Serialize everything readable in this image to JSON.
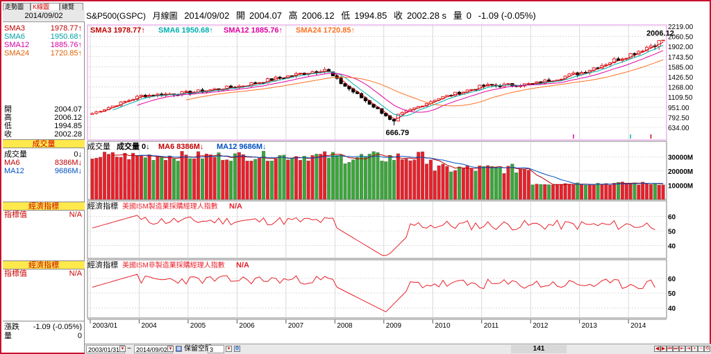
{
  "tabs": [
    {
      "label": "走勢圖",
      "active": false
    },
    {
      "label": "K線圖",
      "active": true
    },
    {
      "label": "總覽",
      "active": false
    }
  ],
  "left_panel": {
    "date": "2014/09/02",
    "ma_rows": [
      {
        "label": "SMA3",
        "value": "1978.77",
        "arrow": "↑",
        "color": "#c00000"
      },
      {
        "label": "SMA6",
        "value": "1950.68",
        "arrow": "↑",
        "color": "#00a0a0"
      },
      {
        "label": "SMA12",
        "value": "1885.76",
        "arrow": "↑",
        "color": "#d000a0"
      },
      {
        "label": "SMA24",
        "value": "1720.85",
        "arrow": "↑",
        "color": "#e06000"
      }
    ],
    "ohlc_rows": [
      {
        "label": "開",
        "value": "2004.07"
      },
      {
        "label": "高",
        "value": "2006.12"
      },
      {
        "label": "低",
        "value": "1994.85"
      },
      {
        "label": "收",
        "value": "2002.28"
      }
    ],
    "volume_header": "成交量",
    "volume_rows": [
      {
        "label": "成交量",
        "value": "0",
        "arrow": "↓",
        "color": "#000000"
      },
      {
        "label": "MA6",
        "value": "8386M",
        "arrow": "↓",
        "color": "#c00000"
      },
      {
        "label": "MA12",
        "value": "9686M",
        "arrow": "↓",
        "color": "#0050c0"
      }
    ],
    "indicator1_header": "經濟指標",
    "indicator1_label": "指標值",
    "indicator1_value": "N/A",
    "indicator2_header": "經濟指標",
    "indicator2_label": "指標值",
    "indicator2_value": "N/A",
    "change_label": "漲跌",
    "change_value": "-1.09 (-0.05%)",
    "volume_label": "量",
    "volume_value": "0"
  },
  "header": {
    "symbol": "S&P500(GSPC)",
    "period": "月線圖",
    "date": "2014/09/02",
    "open_label": "開",
    "open": "2004.07",
    "high_label": "高",
    "high": "2006.12",
    "low_label": "低",
    "low": "1994.85",
    "close_label": "收",
    "close": "2002.28 s",
    "vol_label": "量",
    "vol": "0",
    "change": "-1.09 (-0.05%)"
  },
  "colors": {
    "up": "#e8202a",
    "down": "#000000",
    "vol_up": "#e8202a",
    "vol_down": "#3aa63a",
    "sma3": "#c00000",
    "sma6": "#00b0b0",
    "sma12": "#e000a0",
    "sma24": "#ff7020",
    "ism": "#e8202a",
    "grid": "#c8c8c8",
    "frame": "#c8102e"
  },
  "bottom_bar": {
    "start_date": "2003/01/31",
    "tilde": "~",
    "end_date": "2014/09/02",
    "keep_space_label": "保留空間",
    "keep_space_value": "3",
    "bar_count": "141"
  },
  "chart_data": [
    {
      "type": "candlestick",
      "title": "",
      "legend": [
        {
          "name": "SMA3",
          "text": "SMA3 1978.77↑"
        },
        {
          "name": "SMA6",
          "text": "SMA6 1950.68↑"
        },
        {
          "name": "SMA12",
          "text": "SMA12 1885.76↑"
        },
        {
          "name": "SMA24",
          "text": "SMA24 1720.85↑"
        }
      ],
      "y_ticks": [
        2219.0,
        2060.5,
        1902.0,
        1743.5,
        1585.0,
        1426.5,
        1268.0,
        1109.5,
        951.0,
        792.5,
        634.0
      ],
      "y_tick_labels": [
        "2219.00",
        "2060.50",
        "1902.00",
        "1743.50",
        "1585.00",
        "1426.50",
        "1268.00",
        "1109.50",
        "951.00",
        "792.50",
        "634.00"
      ],
      "ylim": [
        634.0,
        2219.0
      ],
      "x_tick_labels": [
        "2003/01",
        "2004",
        "2005",
        "2006",
        "2007",
        "2008",
        "2009",
        "2010",
        "2011",
        "2012",
        "2013",
        "2014"
      ],
      "annotations": [
        {
          "text": "2006.12",
          "x": "2014/09",
          "y": 2006.12
        },
        {
          "text": "666.79",
          "x": "2009/03",
          "y": 666.79
        }
      ],
      "close_by_year": [
        {
          "x": "2003/01",
          "close": 855
        },
        {
          "x": "2004/01",
          "close": 1131
        },
        {
          "x": "2005/01",
          "close": 1181
        },
        {
          "x": "2006/01",
          "close": 1280
        },
        {
          "x": "2007/01",
          "close": 1438
        },
        {
          "x": "2007/10",
          "close": 1549
        },
        {
          "x": "2008/01",
          "close": 1378
        },
        {
          "x": "2009/01",
          "close": 825
        },
        {
          "x": "2009/03",
          "close": 797
        },
        {
          "x": "2010/01",
          "close": 1073
        },
        {
          "x": "2011/01",
          "close": 1286
        },
        {
          "x": "2012/01",
          "close": 1312
        },
        {
          "x": "2013/01",
          "close": 1498
        },
        {
          "x": "2014/01",
          "close": 1782
        },
        {
          "x": "2014/09",
          "close": 2002
        }
      ],
      "grid": true
    },
    {
      "type": "bar",
      "title": "成交量",
      "legend": [
        {
          "name": "成交量",
          "text": "成交量 0↓"
        },
        {
          "name": "MA6",
          "text": "MA6 8386M↓"
        },
        {
          "name": "MA12",
          "text": "MA12 9686M↓"
        }
      ],
      "y_tick_labels": [
        "30000M",
        "20000M",
        "10000M"
      ],
      "y_ticks": [
        30000,
        20000,
        10000
      ],
      "ylim": [
        0,
        35000
      ]
    },
    {
      "type": "line",
      "title": "經濟指標",
      "series_name": "美國ISM製造業採購經理人指數",
      "value_label": "N/A",
      "y_tick_labels": [
        "60",
        "50",
        "40"
      ],
      "y_ticks": [
        60,
        50,
        40
      ],
      "ylim": [
        32,
        65
      ]
    },
    {
      "type": "line",
      "title": "經濟指標",
      "series_name": "美國ISM非製造業採購經理人指數",
      "value_label": "N/A",
      "y_tick_labels": [
        "60",
        "50",
        "40"
      ],
      "y_ticks": [
        60,
        50,
        40
      ],
      "ylim": [
        34,
        67
      ]
    }
  ]
}
